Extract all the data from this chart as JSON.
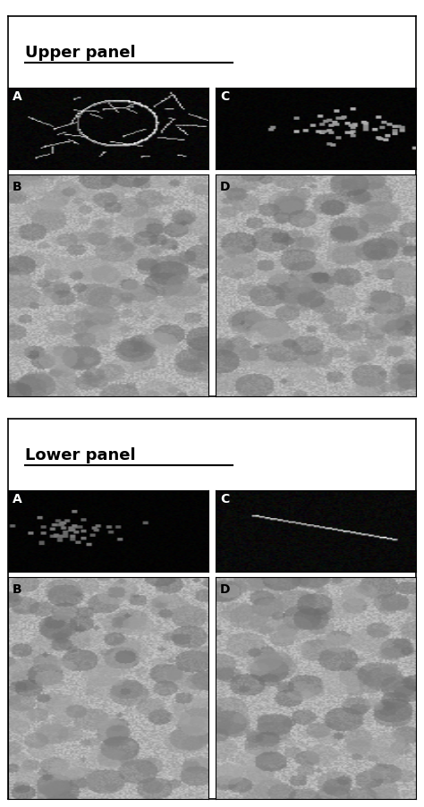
{
  "upper_panel_label": "Upper panel",
  "lower_panel_label": "Lower panel",
  "sub_labels": [
    "A",
    "B",
    "C",
    "D"
  ],
  "figure_bg": "#ffffff",
  "border_color": "#000000",
  "label_fontsize": 13,
  "sublabel_fontsize": 11,
  "outer_border_lw": 1.2,
  "inner_border_lw": 0.8
}
